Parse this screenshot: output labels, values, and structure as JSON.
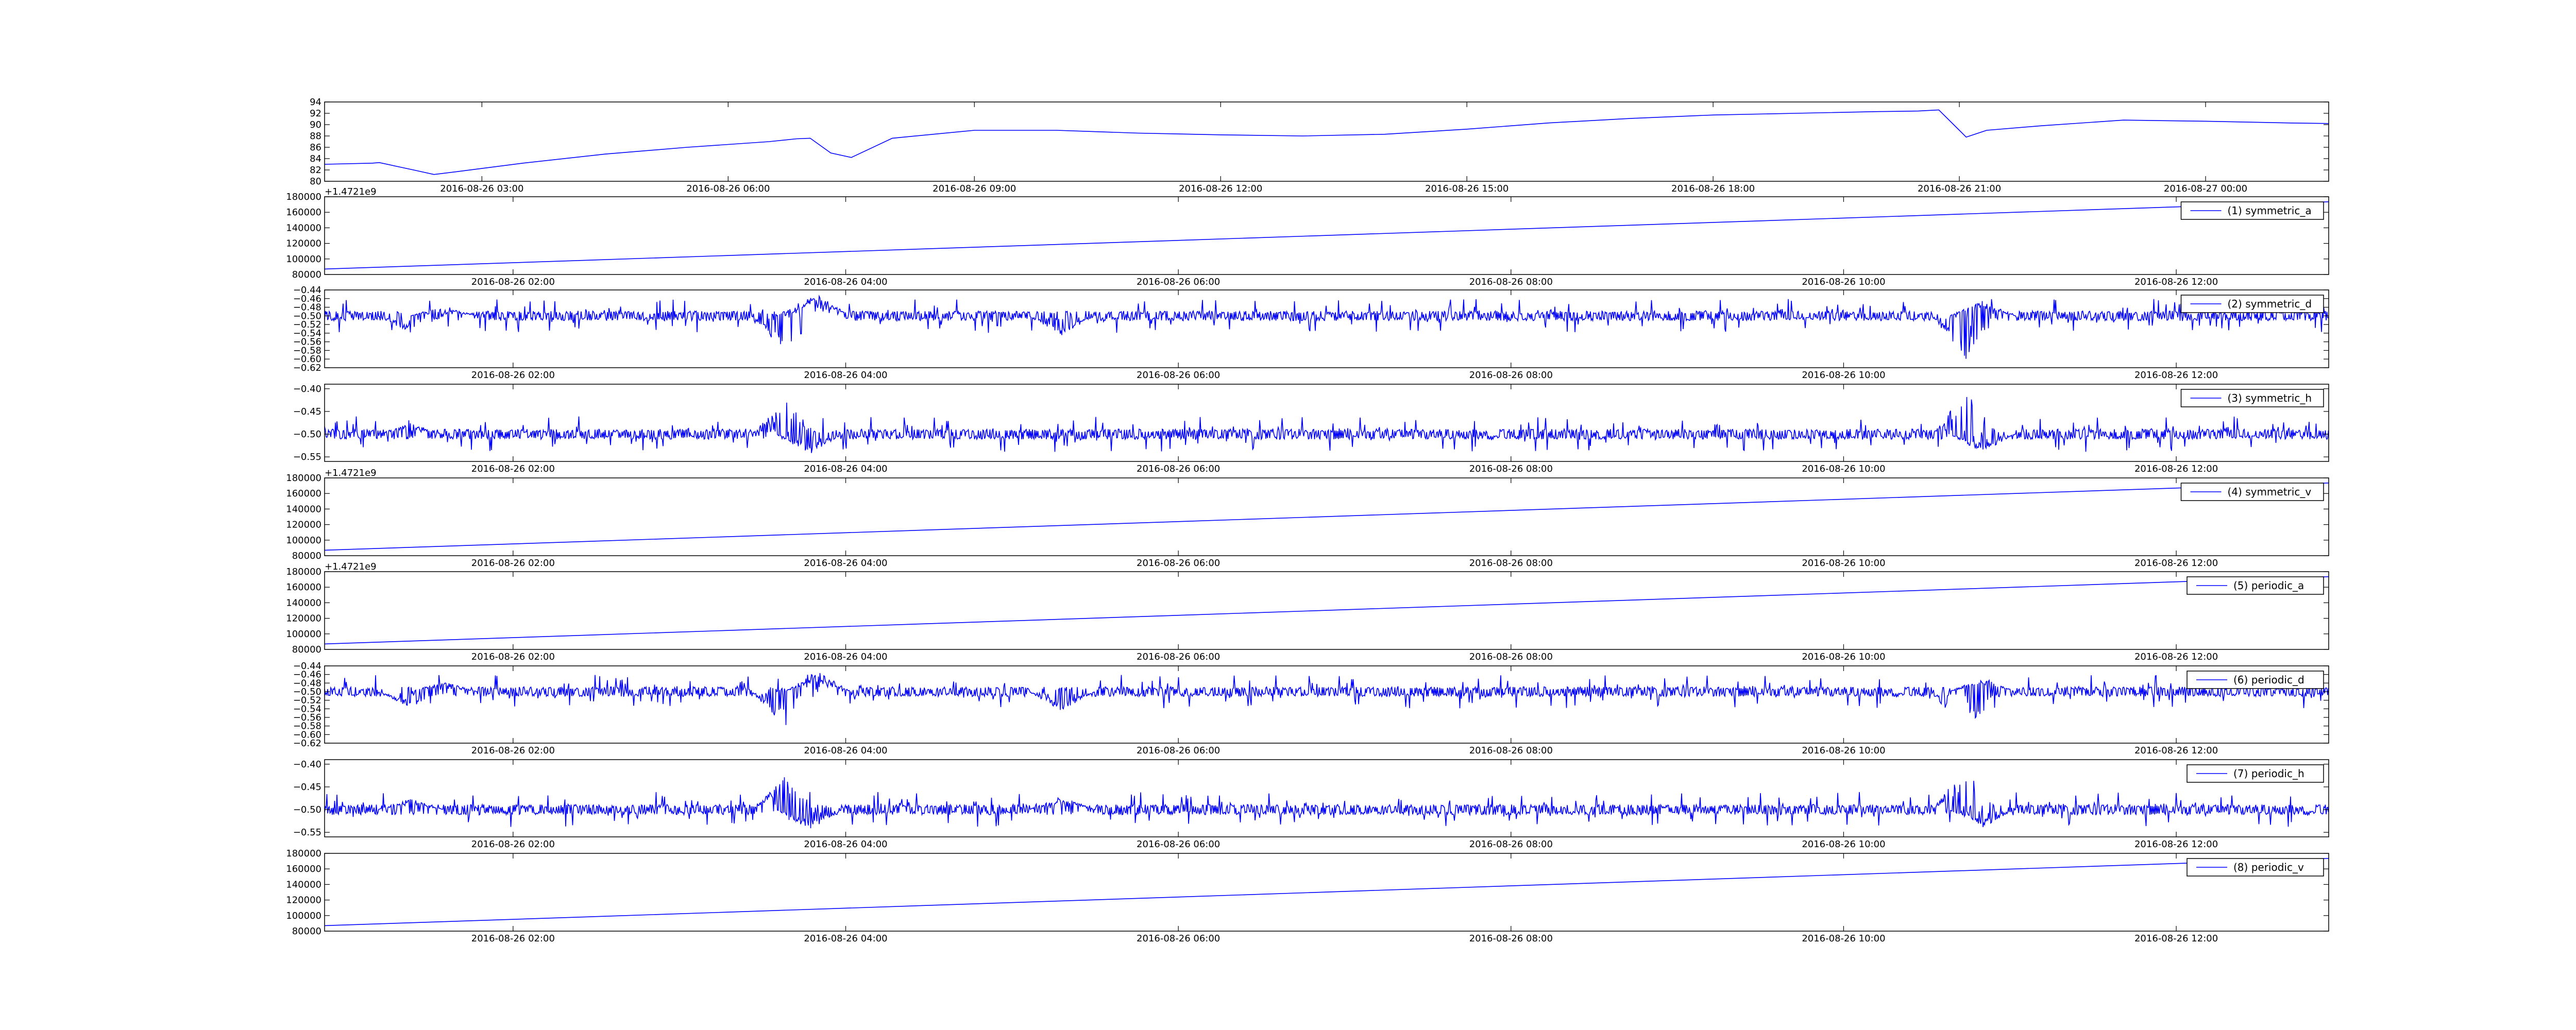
{
  "chart_data": [
    {
      "type": "line",
      "id": "temperature",
      "color": "#0000ff",
      "x_kind": "datetime",
      "xlim": [
        "2016-08-26 01:05",
        "2016-08-27 01:30"
      ],
      "x_ticks": [
        "2016-08-26 03:00",
        "2016-08-26 06:00",
        "2016-08-26 09:00",
        "2016-08-26 12:00",
        "2016-08-26 15:00",
        "2016-08-26 18:00",
        "2016-08-26 21:00",
        "2016-08-27 00:00"
      ],
      "ylim": [
        80,
        94
      ],
      "y_ticks": [
        80,
        82,
        84,
        86,
        88,
        90,
        92,
        94
      ],
      "y_tick_labels": [
        "80",
        "82",
        "84",
        "86",
        "88",
        "90",
        "92",
        "94"
      ],
      "legend": "",
      "x": [
        "2016-08-26 01:05",
        "2016-08-26 01:40",
        "2016-08-26 01:45",
        "2016-08-26 02:10",
        "2016-08-26 02:25",
        "2016-08-26 02:45",
        "2016-08-26 03:30",
        "2016-08-26 04:30",
        "2016-08-26 05:30",
        "2016-08-26 06:30",
        "2016-08-26 06:50",
        "2016-08-26 07:00",
        "2016-08-26 07:15",
        "2016-08-26 07:30",
        "2016-08-26 08:00",
        "2016-08-26 09:00",
        "2016-08-26 10:00",
        "2016-08-26 11:00",
        "2016-08-26 12:00",
        "2016-08-26 13:00",
        "2016-08-26 14:00",
        "2016-08-26 15:00",
        "2016-08-26 16:00",
        "2016-08-26 17:00",
        "2016-08-26 18:00",
        "2016-08-26 19:00",
        "2016-08-26 20:00",
        "2016-08-26 20:30",
        "2016-08-26 20:45",
        "2016-08-26 21:00",
        "2016-08-26 21:05",
        "2016-08-26 21:20",
        "2016-08-26 22:00",
        "2016-08-26 23:00",
        "2016-08-27 00:00",
        "2016-08-27 01:00",
        "2016-08-27 01:30"
      ],
      "y": [
        83.0,
        83.2,
        83.3,
        82.0,
        81.2,
        81.8,
        83.2,
        84.8,
        86.0,
        87.0,
        87.5,
        87.6,
        85.0,
        84.2,
        87.6,
        89.0,
        89.0,
        88.5,
        88.2,
        88.0,
        88.3,
        89.2,
        90.3,
        91.1,
        91.7,
        92.0,
        92.3,
        92.4,
        92.6,
        89.0,
        87.8,
        89.0,
        89.8,
        90.8,
        90.6,
        90.3,
        90.2
      ]
    },
    {
      "type": "line",
      "id": "symmetric_a",
      "color": "#0000ff",
      "x_kind": "datetime",
      "xlim": [
        "2016-08-26 00:52",
        "2016-08-26 12:55"
      ],
      "x_ticks": [
        "2016-08-26 02:00",
        "2016-08-26 04:00",
        "2016-08-26 06:00",
        "2016-08-26 08:00",
        "2016-08-26 10:00",
        "2016-08-26 12:00"
      ],
      "ylim": [
        80000,
        180000
      ],
      "y_ticks": [
        80000,
        100000,
        120000,
        140000,
        160000,
        180000
      ],
      "y_tick_labels": [
        "80000",
        "100000",
        "120000",
        "140000",
        "160000",
        "180000"
      ],
      "offset_text": "+1.4721e9",
      "legend": "(1) symmetric_a",
      "x": [
        "2016-08-26 00:52",
        "2016-08-26 12:55"
      ],
      "y": [
        87000,
        173500
      ]
    },
    {
      "type": "line",
      "id": "symmetric_d",
      "color": "#0000ff",
      "x_kind": "datetime",
      "xlim": [
        "2016-08-26 00:52",
        "2016-08-26 12:55"
      ],
      "x_ticks": [
        "2016-08-26 02:00",
        "2016-08-26 04:00",
        "2016-08-26 06:00",
        "2016-08-26 08:00",
        "2016-08-26 10:00",
        "2016-08-26 12:00"
      ],
      "ylim": [
        -0.62,
        -0.44
      ],
      "y_ticks": [
        -0.62,
        -0.6,
        -0.58,
        -0.56,
        -0.54,
        -0.52,
        -0.5,
        -0.48,
        -0.46,
        -0.44
      ],
      "y_tick_labels": [
        "−0.62",
        "−0.60",
        "−0.58",
        "−0.56",
        "−0.54",
        "−0.52",
        "−0.50",
        "−0.48",
        "−0.46",
        "−0.44"
      ],
      "legend": "(2) symmetric_d",
      "baseline": -0.5,
      "noise": 0.008,
      "spikes": [
        {
          "x": "2016-08-26 01:23",
          "y": -0.54
        },
        {
          "x": "2016-08-26 01:35",
          "y": -0.475
        },
        {
          "x": "2016-08-26 03:38",
          "y": -0.585
        },
        {
          "x": "2016-08-26 03:47",
          "y": -0.455
        },
        {
          "x": "2016-08-26 03:50",
          "y": -0.452
        },
        {
          "x": "2016-08-26 05:18",
          "y": -0.545
        },
        {
          "x": "2016-08-26 10:44",
          "y": -0.605
        },
        {
          "x": "2016-08-26 10:50",
          "y": -0.465
        }
      ]
    },
    {
      "type": "line",
      "id": "symmetric_h",
      "color": "#0000ff",
      "x_kind": "datetime",
      "xlim": [
        "2016-08-26 00:52",
        "2016-08-26 12:55"
      ],
      "x_ticks": [
        "2016-08-26 02:00",
        "2016-08-26 04:00",
        "2016-08-26 06:00",
        "2016-08-26 08:00",
        "2016-08-26 10:00",
        "2016-08-26 12:00"
      ],
      "ylim": [
        -0.56,
        -0.39
      ],
      "y_ticks": [
        -0.55,
        -0.5,
        -0.45,
        -0.4
      ],
      "y_tick_labels": [
        "−0.55",
        "−0.50",
        "−0.45",
        "−0.40"
      ],
      "legend": "(3) symmetric_h",
      "baseline": -0.5,
      "noise": 0.008,
      "spikes": [
        {
          "x": "2016-08-26 01:23",
          "y": -0.475
        },
        {
          "x": "2016-08-26 03:38",
          "y": -0.425
        },
        {
          "x": "2016-08-26 03:47",
          "y": -0.545
        },
        {
          "x": "2016-08-26 10:44",
          "y": -0.405
        },
        {
          "x": "2016-08-26 10:50",
          "y": -0.54
        }
      ]
    },
    {
      "type": "line",
      "id": "symmetric_v",
      "color": "#0000ff",
      "x_kind": "datetime",
      "xlim": [
        "2016-08-26 00:52",
        "2016-08-26 12:55"
      ],
      "x_ticks": [
        "2016-08-26 02:00",
        "2016-08-26 04:00",
        "2016-08-26 06:00",
        "2016-08-26 08:00",
        "2016-08-26 10:00",
        "2016-08-26 12:00"
      ],
      "ylim": [
        80000,
        180000
      ],
      "y_ticks": [
        80000,
        100000,
        120000,
        140000,
        160000,
        180000
      ],
      "y_tick_labels": [
        "80000",
        "100000",
        "120000",
        "140000",
        "160000",
        "180000"
      ],
      "offset_text": "+1.4721e9",
      "legend": "(4) symmetric_v",
      "x": [
        "2016-08-26 00:52",
        "2016-08-26 12:55"
      ],
      "y": [
        87000,
        173500
      ]
    },
    {
      "type": "line",
      "id": "periodic_a",
      "color": "#0000ff",
      "x_kind": "datetime",
      "xlim": [
        "2016-08-26 00:52",
        "2016-08-26 12:55"
      ],
      "x_ticks": [
        "2016-08-26 02:00",
        "2016-08-26 04:00",
        "2016-08-26 06:00",
        "2016-08-26 08:00",
        "2016-08-26 10:00",
        "2016-08-26 12:00"
      ],
      "ylim": [
        80000,
        180000
      ],
      "y_ticks": [
        80000,
        100000,
        120000,
        140000,
        160000,
        180000
      ],
      "y_tick_labels": [
        "80000",
        "100000",
        "120000",
        "140000",
        "160000",
        "180000"
      ],
      "offset_text": "+1.4721e9",
      "legend": "(5) periodic_a",
      "x": [
        "2016-08-26 00:52",
        "2016-08-26 12:55"
      ],
      "y": [
        87000,
        173500
      ]
    },
    {
      "type": "line",
      "id": "periodic_d",
      "color": "#0000ff",
      "x_kind": "datetime",
      "xlim": [
        "2016-08-26 00:52",
        "2016-08-26 12:55"
      ],
      "x_ticks": [
        "2016-08-26 02:00",
        "2016-08-26 04:00",
        "2016-08-26 06:00",
        "2016-08-26 08:00",
        "2016-08-26 10:00",
        "2016-08-26 12:00"
      ],
      "ylim": [
        -0.62,
        -0.44
      ],
      "y_ticks": [
        -0.62,
        -0.6,
        -0.58,
        -0.56,
        -0.54,
        -0.52,
        -0.5,
        -0.48,
        -0.46,
        -0.44
      ],
      "y_tick_labels": [
        "−0.62",
        "−0.60",
        "−0.58",
        "−0.56",
        "−0.54",
        "−0.52",
        "−0.50",
        "−0.48",
        "−0.46",
        "−0.44"
      ],
      "legend": "(6) periodic_d",
      "baseline": -0.5,
      "noise": 0.008,
      "spikes": [
        {
          "x": "2016-08-26 01:23",
          "y": -0.54
        },
        {
          "x": "2016-08-26 01:35",
          "y": -0.475
        },
        {
          "x": "2016-08-26 03:38",
          "y": -0.585
        },
        {
          "x": "2016-08-26 03:47",
          "y": -0.455
        },
        {
          "x": "2016-08-26 03:50",
          "y": -0.452
        },
        {
          "x": "2016-08-26 05:18",
          "y": -0.545
        },
        {
          "x": "2016-08-26 10:44",
          "y": -0.605
        },
        {
          "x": "2016-08-26 10:50",
          "y": -0.465
        }
      ]
    },
    {
      "type": "line",
      "id": "periodic_h",
      "color": "#0000ff",
      "x_kind": "datetime",
      "xlim": [
        "2016-08-26 00:52",
        "2016-08-26 12:55"
      ],
      "x_ticks": [
        "2016-08-26 02:00",
        "2016-08-26 04:00",
        "2016-08-26 06:00",
        "2016-08-26 08:00",
        "2016-08-26 10:00",
        "2016-08-26 12:00"
      ],
      "ylim": [
        -0.56,
        -0.39
      ],
      "y_ticks": [
        -0.55,
        -0.5,
        -0.45,
        -0.4
      ],
      "y_tick_labels": [
        "−0.55",
        "−0.50",
        "−0.45",
        "−0.40"
      ],
      "legend": "(7) periodic_h",
      "baseline": -0.5,
      "noise": 0.008,
      "spikes": [
        {
          "x": "2016-08-26 01:23",
          "y": -0.475
        },
        {
          "x": "2016-08-26 03:38",
          "y": -0.425
        },
        {
          "x": "2016-08-26 03:47",
          "y": -0.545
        },
        {
          "x": "2016-08-26 05:18",
          "y": -0.47
        },
        {
          "x": "2016-08-26 10:44",
          "y": -0.405
        },
        {
          "x": "2016-08-26 10:50",
          "y": -0.54
        }
      ]
    },
    {
      "type": "line",
      "id": "periodic_v",
      "color": "#0000ff",
      "x_kind": "datetime",
      "xlim": [
        "2016-08-26 00:52",
        "2016-08-26 12:55"
      ],
      "x_ticks": [
        "2016-08-26 02:00",
        "2016-08-26 04:00",
        "2016-08-26 06:00",
        "2016-08-26 08:00",
        "2016-08-26 10:00",
        "2016-08-26 12:00"
      ],
      "ylim": [
        80000,
        180000
      ],
      "y_ticks": [
        80000,
        100000,
        120000,
        140000,
        160000,
        180000
      ],
      "y_tick_labels": [
        "80000",
        "100000",
        "120000",
        "140000",
        "160000",
        "180000"
      ],
      "legend": "(8) periodic_v",
      "x": [
        "2016-08-26 00:52",
        "2016-08-26 12:55"
      ],
      "y": [
        87000,
        173500
      ]
    }
  ]
}
